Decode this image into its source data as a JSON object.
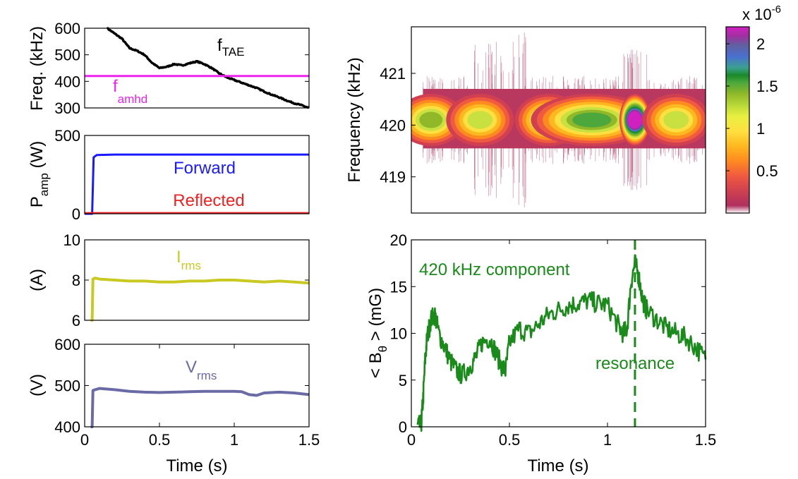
{
  "chart_data": [
    {
      "id": "freq",
      "type": "line",
      "ylabel": "Freq. (kHz)",
      "ylim": [
        300,
        600
      ],
      "yticks": [
        300,
        400,
        500,
        600
      ],
      "xlim": [
        0,
        1.5
      ],
      "xticks": [
        0,
        0.5,
        1,
        1.5
      ],
      "series": [
        {
          "label_main": "f",
          "label_sub": "TAE",
          "color": "#000000",
          "x": [
            0.15,
            0.2,
            0.25,
            0.3,
            0.35,
            0.4,
            0.45,
            0.5,
            0.55,
            0.6,
            0.65,
            0.7,
            0.75,
            0.8,
            0.85,
            0.9,
            0.95,
            1.0,
            1.05,
            1.1,
            1.15,
            1.2,
            1.25,
            1.3,
            1.35,
            1.4,
            1.45,
            1.5
          ],
          "y": [
            600,
            580,
            560,
            525,
            515,
            500,
            470,
            450,
            455,
            465,
            460,
            468,
            475,
            465,
            450,
            430,
            415,
            405,
            395,
            385,
            375,
            362,
            350,
            340,
            328,
            318,
            310,
            300
          ]
        },
        {
          "label_main": "f",
          "label_sub": "amhd",
          "color": "#ee22ee",
          "x": [
            0.0,
            1.5
          ],
          "y": [
            420,
            420
          ]
        }
      ]
    },
    {
      "id": "pamp",
      "type": "line",
      "ylabel_main": "P",
      "ylabel_sub": "amp",
      "ylabel_tail": " (W)",
      "ylim": [
        0,
        500
      ],
      "yticks": [
        0,
        500
      ],
      "xlim": [
        0,
        1.5
      ],
      "xticks": [
        0,
        0.5,
        1,
        1.5
      ],
      "series": [
        {
          "name": "Forward",
          "color": "#1a1aff",
          "x": [
            0.0,
            0.04,
            0.05,
            0.06,
            0.08,
            0.2,
            1.5
          ],
          "y": [
            0,
            0,
            0,
            360,
            375,
            378,
            378
          ]
        },
        {
          "name": "Reflected",
          "color": "#ee2222",
          "x": [
            0.0,
            1.5
          ],
          "y": [
            5,
            5
          ]
        }
      ]
    },
    {
      "id": "irms",
      "type": "line",
      "ylabel": "(A)",
      "ylim": [
        6,
        10
      ],
      "yticks": [
        6,
        8,
        10
      ],
      "xlim": [
        0,
        1.5
      ],
      "xticks": [
        0,
        0.5,
        1,
        1.5
      ],
      "series": [
        {
          "label_main": "I",
          "label_sub": "rms",
          "color": "#c9c922",
          "x": [
            0.04,
            0.05,
            0.055,
            0.07,
            0.1,
            0.2,
            0.3,
            0.4,
            0.5,
            0.6,
            0.7,
            0.8,
            0.9,
            1.0,
            1.1,
            1.2,
            1.3,
            1.4,
            1.5
          ],
          "y": [
            6.0,
            6.0,
            8.05,
            8.1,
            8.05,
            8.0,
            7.95,
            7.95,
            7.9,
            7.9,
            7.95,
            7.95,
            8.0,
            8.0,
            7.95,
            7.9,
            7.95,
            7.9,
            7.85
          ]
        }
      ]
    },
    {
      "id": "vrms",
      "type": "line",
      "ylabel": "(V)",
      "ylim": [
        400,
        600
      ],
      "yticks": [
        400,
        500,
        600
      ],
      "xlim": [
        0,
        1.5
      ],
      "xticks": [
        0,
        0.5,
        1,
        1.5
      ],
      "xlabel": "Time (s)",
      "series": [
        {
          "label_main": "V",
          "label_sub": "rms",
          "color": "#6a6aa6",
          "x": [
            0.04,
            0.05,
            0.055,
            0.07,
            0.1,
            0.2,
            0.3,
            0.4,
            0.5,
            0.6,
            0.7,
            0.8,
            0.9,
            1.0,
            1.05,
            1.1,
            1.15,
            1.2,
            1.3,
            1.4,
            1.5
          ],
          "y": [
            400,
            400,
            488,
            490,
            493,
            490,
            486,
            484,
            483,
            484,
            485,
            486,
            486,
            486,
            485,
            478,
            476,
            482,
            484,
            482,
            478
          ]
        }
      ]
    },
    {
      "id": "spectrogram",
      "type": "heatmap",
      "ylabel": "Frequency (kHz)",
      "ylim": [
        418.3,
        421.9
      ],
      "yticks": [
        419,
        420,
        421
      ],
      "xlim": [
        0,
        1.5
      ],
      "colorbar": {
        "ticks": [
          0.5,
          1,
          1.5,
          2
        ],
        "scale_main": "x 10",
        "scale_exp": "-6",
        "range": [
          0,
          2.2
        ]
      },
      "ridge_frequency": 420.1,
      "blobs": [
        {
          "x": 0.1,
          "y": 420.1,
          "peak": 0.7
        },
        {
          "x": 0.35,
          "y": 420.1,
          "peak": 0.55
        },
        {
          "x": 0.7,
          "y": 420.1,
          "peak": 0.7
        },
        {
          "x": 0.92,
          "y": 420.1,
          "peak": 0.95
        },
        {
          "x": 1.14,
          "y": 420.1,
          "peak": 2.1
        },
        {
          "x": 1.35,
          "y": 420.1,
          "peak": 0.6
        }
      ]
    },
    {
      "id": "btheta",
      "type": "line",
      "ylabel_pre": "< B",
      "ylabel_sub": "θ",
      "ylabel_tail": " > (mG)",
      "ylim": [
        0,
        20
      ],
      "yticks": [
        0,
        5,
        10,
        15,
        20
      ],
      "xlim": [
        0,
        1.5
      ],
      "xticks": [
        0,
        0.5,
        1,
        1.5
      ],
      "xlabel": "Time (s)",
      "series": [
        {
          "name": "420 kHz component",
          "color": "#1a8a1a",
          "x": [
            0.03,
            0.05,
            0.06,
            0.07,
            0.08,
            0.1,
            0.12,
            0.14,
            0.17,
            0.2,
            0.23,
            0.26,
            0.3,
            0.33,
            0.36,
            0.4,
            0.43,
            0.46,
            0.48,
            0.5,
            0.55,
            0.6,
            0.65,
            0.7,
            0.75,
            0.8,
            0.85,
            0.9,
            0.95,
            1.0,
            1.05,
            1.08,
            1.1,
            1.12,
            1.14,
            1.16,
            1.18,
            1.2,
            1.25,
            1.3,
            1.35,
            1.4,
            1.45,
            1.5
          ],
          "y": [
            0,
            0.2,
            3,
            7,
            9.5,
            11.5,
            12,
            10,
            8.5,
            7,
            6,
            5.5,
            6.5,
            7.5,
            9,
            9.5,
            8,
            6.5,
            6,
            9,
            10.5,
            10,
            11,
            12,
            12.5,
            13,
            13.2,
            13.5,
            13.2,
            13,
            11,
            10,
            10.5,
            15.5,
            17.5,
            16,
            13.5,
            12.5,
            11.5,
            10.5,
            10,
            9.5,
            8.5,
            7.2
          ]
        }
      ],
      "annotation": "resonance",
      "resonance_x": 1.14
    }
  ]
}
